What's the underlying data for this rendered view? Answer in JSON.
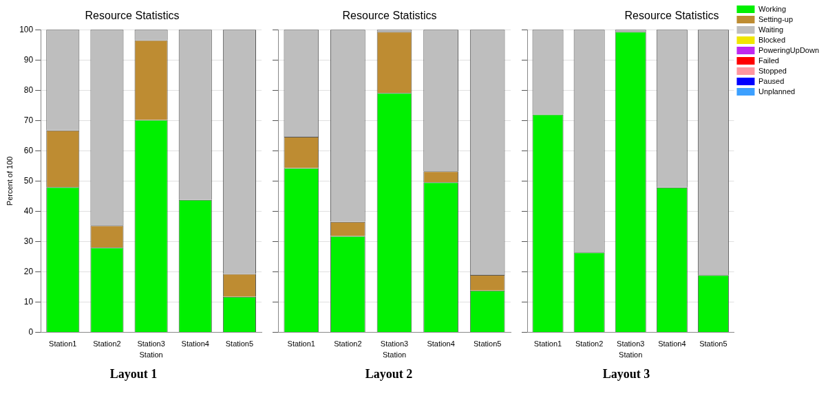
{
  "chart_data": [
    {
      "type": "bar",
      "title": "Resource Statistics",
      "xlabel": "Station",
      "ylabel": "Percent of 100",
      "categories": [
        "Station1",
        "Station2",
        "Station3",
        "Station4",
        "Station5"
      ],
      "stacked": true,
      "ylim": [
        0,
        100
      ],
      "yticks": [
        0,
        10,
        20,
        30,
        40,
        50,
        60,
        70,
        80,
        90,
        100
      ],
      "grid": "y",
      "legend": false,
      "annotations": [
        "Layout 1"
      ],
      "series": [
        {
          "color": "#00f000",
          "values": [
            48,
            28,
            70.2,
            43.8,
            11.8
          ]
        },
        {
          "color": "#be8c32",
          "values": [
            18.7,
            7.3,
            26.3,
            0,
            7.5
          ]
        },
        {
          "color": "#bebebe",
          "values": [
            33.3,
            64.7,
            3.5,
            56.2,
            80.7
          ]
        }
      ]
    },
    {
      "type": "bar",
      "title": "Resource Statistics",
      "xlabel": "Station",
      "categories": [
        "Station1",
        "Station2",
        "Station3",
        "Station4",
        "Station5"
      ],
      "stacked": true,
      "ylim": [
        0,
        100
      ],
      "yticks": [
        0,
        10,
        20,
        30,
        40,
        50,
        60,
        70,
        80,
        90,
        100
      ],
      "tick_labels": "x",
      "grid": "y",
      "legend": false,
      "annotations": [
        "Layout 2"
      ],
      "series": [
        {
          "color": "#00f000",
          "values": [
            54.3,
            31.8,
            79.1,
            49.6,
            13.8
          ]
        },
        {
          "color": "#be8c32",
          "values": [
            10.3,
            4.7,
            20.2,
            3.6,
            5.2
          ]
        },
        {
          "color": "#bebebe",
          "values": [
            35.4,
            63.5,
            0.7,
            46.8,
            81
          ]
        }
      ]
    },
    {
      "type": "bar",
      "title": "Resource Statistics",
      "xlabel": "Station",
      "categories": [
        "Station1",
        "Station2",
        "Station3",
        "Station4",
        "Station5"
      ],
      "stacked": true,
      "ylim": [
        0,
        100
      ],
      "yticks": [
        0,
        10,
        20,
        30,
        40,
        50,
        60,
        70,
        80,
        90,
        100
      ],
      "tick_labels": "x",
      "grid": "y",
      "legend": "right",
      "annotations": [
        "Layout 3"
      ],
      "series": [
        {
          "name": "Working",
          "color": "#00f000",
          "values": [
            72,
            26.4,
            99.3,
            47.9,
            18.9
          ]
        },
        {
          "name": "Setting-up",
          "color": "#be8c32",
          "values": [
            0,
            0,
            0,
            0,
            0
          ]
        },
        {
          "name": "Waiting",
          "color": "#bebebe",
          "values": [
            28,
            73.6,
            0.7,
            52.1,
            81.1
          ]
        },
        {
          "name": "Blocked",
          "color": "#f0e600",
          "values": [
            0,
            0,
            0,
            0,
            0
          ]
        },
        {
          "name": "PoweringUpDown",
          "color": "#be28f0",
          "values": [
            0,
            0,
            0,
            0,
            0
          ]
        },
        {
          "name": "Failed",
          "color": "#ff0000",
          "values": [
            0,
            0,
            0,
            0,
            0
          ]
        },
        {
          "name": "Stopped",
          "color": "#ff96a0",
          "values": [
            0,
            0,
            0,
            0,
            0
          ]
        },
        {
          "name": "Paused",
          "color": "#0000ff",
          "values": [
            0,
            0,
            0,
            0,
            0
          ]
        },
        {
          "name": "Unplanned",
          "color": "#3ca0ff",
          "values": [
            0,
            0,
            0,
            0,
            0
          ]
        }
      ]
    }
  ]
}
